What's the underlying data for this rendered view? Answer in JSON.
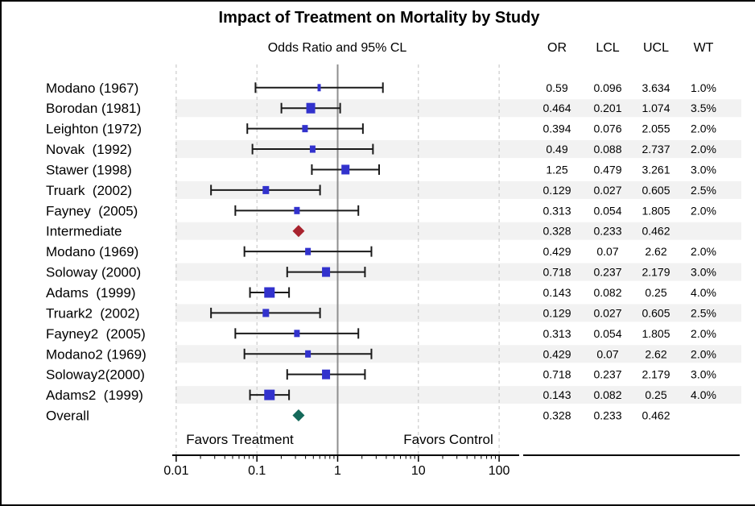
{
  "title": "Impact of Treatment on Mortality by Study",
  "colors": {
    "marker_blue": "#3232cd",
    "intermediate_red": "#a8232e",
    "overall_teal": "#15695a",
    "band_gray": "#f2f2f2",
    "grid_gray": "#c2c2c2",
    "refline_gray": "#8f8f8f",
    "axis_black": "#000000",
    "ci_black": "#1a1a1a"
  },
  "chart_data": {
    "type": "scatter",
    "subtype": "forest-plot",
    "title": "Impact of Treatment on Mortality by Study",
    "subtitle": "Odds Ratio and 95% CL",
    "columns": [
      "OR",
      "LCL",
      "UCL",
      "WT"
    ],
    "x_axis": {
      "scale": "log",
      "ticks": [
        0.01,
        0.1,
        1,
        10,
        100
      ],
      "tick_labels": [
        "0.01",
        "0.1",
        "1",
        "10",
        "100"
      ],
      "reference_line": 1,
      "left_annotation": "Favors Treatment",
      "right_annotation": "Favors Control"
    },
    "legend": "none",
    "grid": "vertical-dashed",
    "row_striping": "alternate",
    "studies": [
      {
        "label": "Modano (1967)",
        "or": 0.59,
        "lcl": 0.096,
        "ucl": 3.634,
        "wt": "1.0%",
        "marker": "square"
      },
      {
        "label": "Borodan (1981)",
        "or": 0.464,
        "lcl": 0.201,
        "ucl": 1.074,
        "wt": "3.5%",
        "marker": "square"
      },
      {
        "label": "Leighton (1972)",
        "or": 0.394,
        "lcl": 0.076,
        "ucl": 2.055,
        "wt": "2.0%",
        "marker": "square"
      },
      {
        "label": "Novak  (1992)",
        "or": 0.49,
        "lcl": 0.088,
        "ucl": 2.737,
        "wt": "2.0%",
        "marker": "square"
      },
      {
        "label": "Stawer (1998)",
        "or": 1.25,
        "lcl": 0.479,
        "ucl": 3.261,
        "wt": "3.0%",
        "marker": "square"
      },
      {
        "label": "Truark  (2002)",
        "or": 0.129,
        "lcl": 0.027,
        "ucl": 0.605,
        "wt": "2.5%",
        "marker": "square"
      },
      {
        "label": "Fayney  (2005)",
        "or": 0.313,
        "lcl": 0.054,
        "ucl": 1.805,
        "wt": "2.0%",
        "marker": "square"
      },
      {
        "label": "Intermediate",
        "or": 0.328,
        "lcl": 0.233,
        "ucl": 0.462,
        "wt": null,
        "marker": "diamond-red"
      },
      {
        "label": "Modano (1969)",
        "or": 0.429,
        "lcl": 0.07,
        "ucl": 2.62,
        "wt": "2.0%",
        "marker": "square"
      },
      {
        "label": "Soloway (2000)",
        "or": 0.718,
        "lcl": 0.237,
        "ucl": 2.179,
        "wt": "3.0%",
        "marker": "square"
      },
      {
        "label": "Adams  (1999)",
        "or": 0.143,
        "lcl": 0.082,
        "ucl": 0.25,
        "wt": "4.0%",
        "marker": "square"
      },
      {
        "label": "Truark2  (2002)",
        "or": 0.129,
        "lcl": 0.027,
        "ucl": 0.605,
        "wt": "2.5%",
        "marker": "square"
      },
      {
        "label": "Fayney2  (2005)",
        "or": 0.313,
        "lcl": 0.054,
        "ucl": 1.805,
        "wt": "2.0%",
        "marker": "square"
      },
      {
        "label": "Modano2 (1969)",
        "or": 0.429,
        "lcl": 0.07,
        "ucl": 2.62,
        "wt": "2.0%",
        "marker": "square"
      },
      {
        "label": "Soloway2(2000)",
        "or": 0.718,
        "lcl": 0.237,
        "ucl": 2.179,
        "wt": "3.0%",
        "marker": "square"
      },
      {
        "label": "Adams2  (1999)",
        "or": 0.143,
        "lcl": 0.082,
        "ucl": 0.25,
        "wt": "4.0%",
        "marker": "square"
      },
      {
        "label": "Overall",
        "or": 0.328,
        "lcl": 0.233,
        "ucl": 0.462,
        "wt": null,
        "marker": "diamond-teal"
      }
    ]
  }
}
